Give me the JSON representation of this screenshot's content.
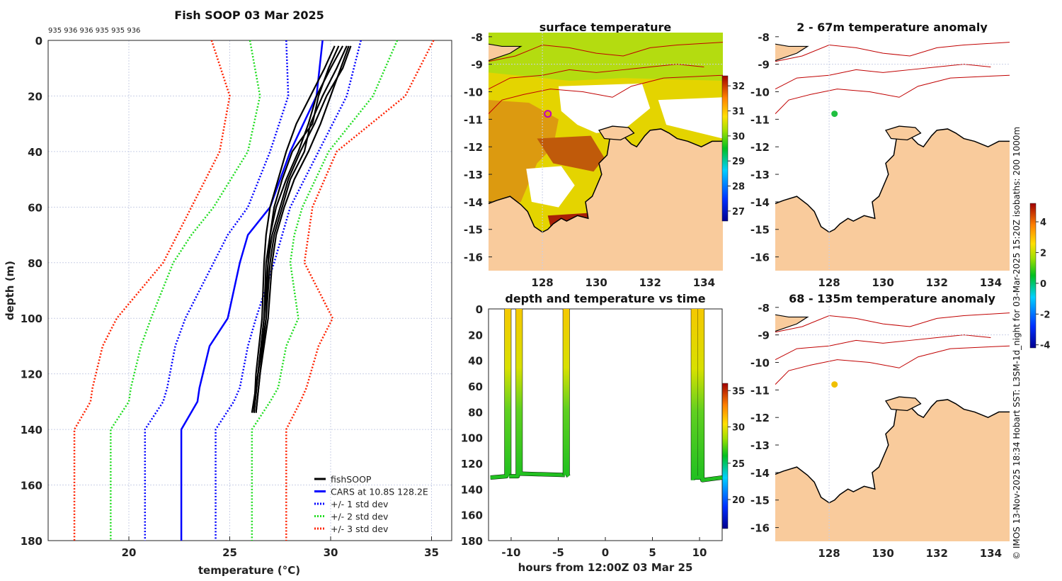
{
  "chart_data": [
    {
      "type": "line",
      "title": "Fish SOOP 03 Mar 2025",
      "profile_ids_label": "935 936 936 935 935 936",
      "xlabel": "temperature (°C)",
      "ylabel": "depth (m)",
      "xlim": [
        16,
        36
      ],
      "ylim": [
        180,
        0
      ],
      "xticks": [
        20,
        25,
        30,
        35
      ],
      "yticks": [
        0,
        20,
        40,
        60,
        80,
        100,
        120,
        140,
        160,
        180
      ],
      "grid": true,
      "legend_position": "bottom-right",
      "legend": [
        "fishSOOP",
        "CARS at 10.8S 128.2E",
        "+/- 1 std dev",
        "+/- 2 std dev",
        "+/- 3 std dev"
      ],
      "fishsoop_depths": [
        2,
        10,
        20,
        30,
        40,
        50,
        60,
        70,
        80,
        100,
        120,
        134
      ],
      "fishsoop_profiles": [
        [
          30.6,
          30.0,
          29.3,
          28.9,
          28.4,
          27.8,
          27.3,
          27.0,
          26.9,
          26.7,
          26.4,
          26.1
        ],
        [
          31.0,
          30.6,
          29.8,
          29.2,
          28.5,
          27.9,
          27.5,
          27.1,
          26.9,
          26.8,
          26.5,
          26.3
        ],
        [
          30.2,
          29.7,
          29.0,
          28.3,
          27.8,
          27.4,
          27.0,
          26.8,
          26.7,
          26.6,
          26.3,
          26.2
        ],
        [
          30.8,
          30.3,
          29.6,
          29.0,
          28.7,
          28.0,
          27.6,
          27.2,
          27.0,
          26.8,
          26.4,
          26.2
        ],
        [
          30.4,
          29.9,
          29.4,
          29.1,
          28.1,
          27.6,
          27.2,
          27.0,
          26.8,
          26.7,
          26.4,
          26.2
        ],
        [
          30.9,
          30.5,
          30.0,
          29.5,
          28.9,
          28.2,
          27.7,
          27.3,
          27.1,
          26.9,
          26.5,
          26.3
        ]
      ],
      "cars_depths": [
        0,
        20,
        40,
        60,
        70,
        80,
        100,
        110,
        125,
        130,
        140,
        180
      ],
      "series": [
        {
          "name": "CARS mean",
          "color": "#0000ff",
          "style": "solid",
          "values": [
            29.6,
            29.3,
            28.0,
            27.0,
            25.9,
            25.5,
            24.9,
            24.0,
            23.5,
            23.4,
            22.6,
            22.6
          ]
        },
        {
          "name": "+1 std",
          "color": "#0000ff",
          "style": "dotted",
          "values": [
            31.5,
            30.8,
            29.4,
            28.0,
            27.6,
            27.2,
            26.3,
            25.9,
            25.5,
            25.2,
            24.3,
            24.3
          ]
        },
        {
          "name": "-1 std",
          "color": "#0000ff",
          "style": "dotted",
          "values": [
            27.8,
            27.9,
            27.0,
            25.9,
            24.9,
            24.2,
            22.8,
            22.3,
            21.9,
            21.7,
            20.8,
            20.8
          ]
        },
        {
          "name": "+2 std",
          "color": "#22dd22",
          "style": "dotted",
          "values": [
            33.3,
            32.1,
            29.9,
            28.6,
            28.2,
            28.0,
            28.4,
            27.8,
            27.4,
            27.0,
            26.1,
            26.1
          ]
        },
        {
          "name": "-2 std",
          "color": "#22dd22",
          "style": "dotted",
          "values": [
            26.0,
            26.5,
            25.9,
            24.2,
            23.1,
            22.2,
            21.1,
            20.6,
            20.1,
            20.0,
            19.1,
            19.1
          ]
        },
        {
          "name": "+3 std",
          "color": "#ff2200",
          "style": "dotted",
          "values": [
            35.1,
            33.7,
            30.3,
            29.1,
            28.9,
            28.7,
            30.1,
            29.4,
            28.8,
            28.5,
            27.8,
            27.8
          ]
        },
        {
          "name": "-3 std",
          "color": "#ff2200",
          "style": "dotted",
          "values": [
            24.1,
            25.0,
            24.5,
            23.1,
            22.4,
            21.7,
            19.4,
            18.7,
            18.2,
            18.1,
            17.3,
            17.3
          ]
        }
      ]
    },
    {
      "type": "heatmap",
      "title": "surface temperature",
      "lon_range": [
        126,
        134.7
      ],
      "lat_range": [
        -16.5,
        -7.85
      ],
      "xticks": [
        128,
        130,
        132,
        134
      ],
      "yticks": [
        -8,
        -9,
        -10,
        -11,
        -12,
        -13,
        -14,
        -15,
        -16
      ],
      "colorbar_ticks": [
        27,
        28,
        29,
        30,
        31,
        32
      ],
      "colorbar_range": [
        26.6,
        32.4
      ],
      "marker": {
        "lon": 128.2,
        "lat": -10.8
      }
    },
    {
      "type": "scatter",
      "title": "depth and temperature vs time",
      "xlabel": "hours from 12:00Z 03 Mar 25",
      "xlim": [
        -12.4,
        12.4
      ],
      "ylim": [
        180,
        0
      ],
      "xticks": [
        -10,
        -5,
        0,
        5,
        10
      ],
      "yticks": [
        0,
        20,
        40,
        60,
        80,
        100,
        120,
        140,
        160,
        180
      ],
      "colorbar_ticks": [
        20,
        25,
        30,
        35
      ],
      "colorbar_range": [
        16,
        36
      ],
      "tracks": [
        {
          "t": [
            -12.2,
            -10.5,
            -10.5,
            -10.2,
            -10.2
          ],
          "d": [
            131,
            130,
            0,
            0,
            130
          ]
        },
        {
          "t": [
            -10.2,
            -9.3,
            -9.3,
            -9.0,
            -9.0,
            -4.3
          ],
          "d": [
            130,
            130,
            0,
            0,
            128,
            129
          ]
        },
        {
          "t": [
            -4.3,
            -4.3,
            -4.0,
            -4.0,
            -3.9
          ],
          "d": [
            129,
            0,
            0,
            129,
            130
          ]
        },
        {
          "t": [
            9.3,
            9.3,
            9.6,
            9.6,
            10.0,
            10.0,
            10.3,
            10.3,
            12.4
          ],
          "d": [
            133,
            0,
            0,
            131,
            131,
            0,
            0,
            133,
            131
          ]
        }
      ]
    },
    {
      "type": "heatmap",
      "title": "2 - 67m temperature anomaly",
      "lon_range": [
        126,
        134.7
      ],
      "lat_range": [
        -16.5,
        -7.85
      ],
      "xticks": [
        128,
        130,
        132,
        134
      ],
      "yticks": [
        -8,
        -9,
        -10,
        -11,
        -12,
        -13,
        -14,
        -15,
        -16
      ],
      "marker": {
        "lon": 128.2,
        "lat": -10.8,
        "anomaly": 0.5
      }
    },
    {
      "type": "heatmap",
      "title": "68 - 135m temperature anomaly",
      "lon_range": [
        126,
        134.7
      ],
      "lat_range": [
        -16.5,
        -7.85
      ],
      "xticks": [
        128,
        130,
        132,
        134
      ],
      "yticks": [
        -8,
        -9,
        -10,
        -11,
        -12,
        -13,
        -14,
        -15,
        -16
      ],
      "marker": {
        "lon": 128.2,
        "lat": -10.8,
        "anomaly": 2.5
      },
      "colorbar_ticks": [
        -4,
        -2,
        0,
        2,
        4
      ],
      "colorbar_range": [
        -4.2,
        5.2
      ]
    }
  ],
  "credit": "© IMOS 13-Nov-2025 18:34 Hobart SST: L3SM-1d_night for 03-Mar-2025 15:20Z isobaths: 200  1000m",
  "colors": {
    "land": "#f9cb9c",
    "coast": "#000000",
    "isobath": "#c00000"
  }
}
